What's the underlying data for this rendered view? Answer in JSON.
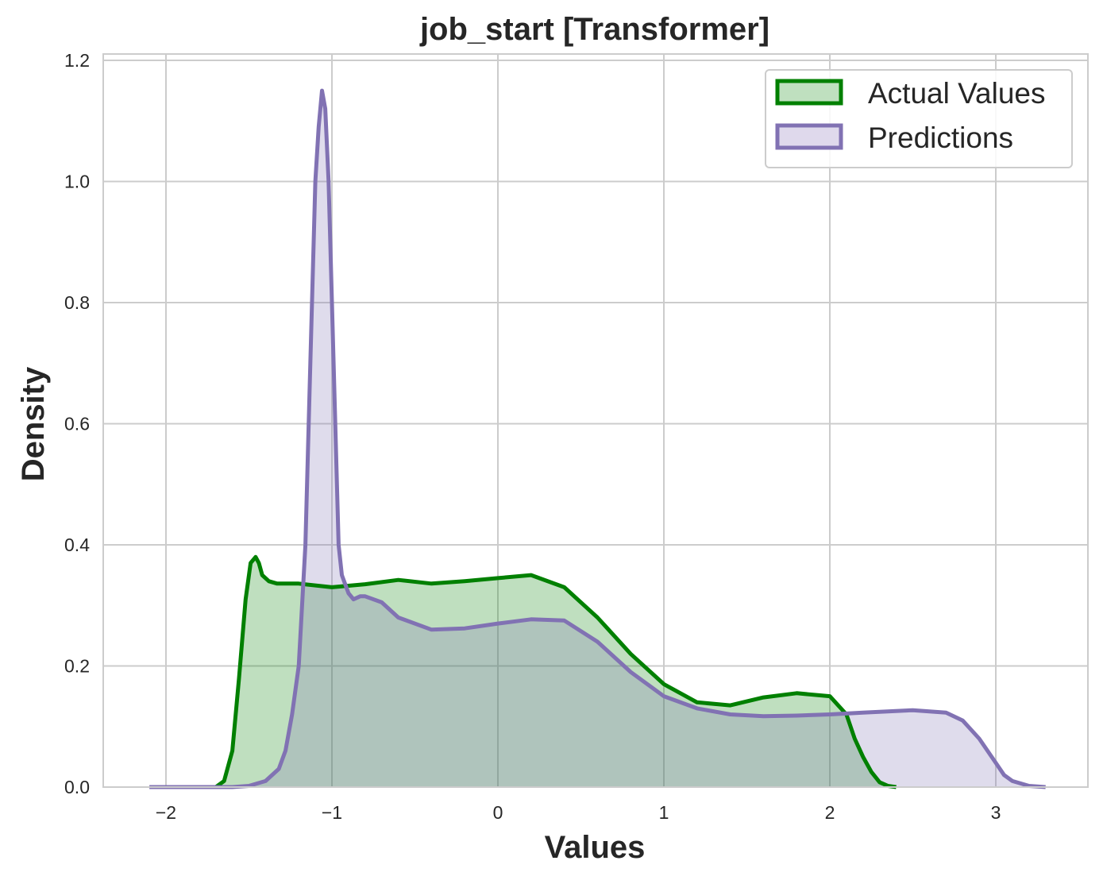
{
  "chart_data": {
    "type": "area",
    "title": "job_start [Transformer]",
    "xlabel": "Values",
    "ylabel": "Density",
    "xlim": [
      -2.4,
      3.55
    ],
    "ylim": [
      0.0,
      1.22
    ],
    "x_ticks": [
      -2,
      -1,
      0,
      1,
      2,
      3
    ],
    "x_tick_labels": [
      "−2",
      "−1",
      "0",
      "1",
      "2",
      "3"
    ],
    "y_ticks": [
      0.0,
      0.2,
      0.4,
      0.6,
      0.8,
      1.0,
      1.2
    ],
    "y_tick_labels": [
      "0.0",
      "0.2",
      "0.4",
      "0.6",
      "0.8",
      "1.0",
      "1.2"
    ],
    "grid": true,
    "legend_position": "top-right",
    "series": [
      {
        "name": "Actual Values",
        "color": "#008000",
        "fill": "#bfe0bf",
        "x": [
          -1.7,
          -1.65,
          -1.6,
          -1.56,
          -1.52,
          -1.49,
          -1.46,
          -1.44,
          -1.42,
          -1.38,
          -1.33,
          -1.2,
          -1.0,
          -0.8,
          -0.6,
          -0.4,
          -0.2,
          0.0,
          0.2,
          0.4,
          0.6,
          0.8,
          1.0,
          1.2,
          1.4,
          1.6,
          1.8,
          2.0,
          2.1,
          2.15,
          2.2,
          2.25,
          2.3,
          2.35,
          2.4
        ],
        "y": [
          0.0,
          0.01,
          0.06,
          0.18,
          0.31,
          0.37,
          0.38,
          0.37,
          0.35,
          0.34,
          0.336,
          0.336,
          0.33,
          0.335,
          0.342,
          0.336,
          0.34,
          0.345,
          0.35,
          0.33,
          0.28,
          0.22,
          0.17,
          0.14,
          0.135,
          0.148,
          0.155,
          0.15,
          0.12,
          0.08,
          0.05,
          0.025,
          0.008,
          0.002,
          0.0
        ]
      },
      {
        "name": "Predictions",
        "color": "#8172b3",
        "fill": "#dfd9ec",
        "x": [
          -2.1,
          -1.6,
          -1.5,
          -1.4,
          -1.32,
          -1.28,
          -1.24,
          -1.2,
          -1.16,
          -1.13,
          -1.1,
          -1.08,
          -1.06,
          -1.04,
          -1.02,
          -1.0,
          -0.98,
          -0.96,
          -0.94,
          -0.9,
          -0.87,
          -0.83,
          -0.8,
          -0.7,
          -0.6,
          -0.4,
          -0.2,
          0.0,
          0.2,
          0.4,
          0.6,
          0.8,
          1.0,
          1.2,
          1.4,
          1.6,
          1.8,
          2.0,
          2.2,
          2.5,
          2.7,
          2.8,
          2.9,
          3.0,
          3.05,
          3.1,
          3.2,
          3.3
        ],
        "y": [
          0.0,
          0.0,
          0.002,
          0.01,
          0.03,
          0.06,
          0.12,
          0.2,
          0.4,
          0.7,
          1.0,
          1.09,
          1.15,
          1.12,
          1.0,
          0.8,
          0.6,
          0.4,
          0.35,
          0.32,
          0.31,
          0.315,
          0.315,
          0.305,
          0.28,
          0.26,
          0.262,
          0.27,
          0.277,
          0.275,
          0.24,
          0.19,
          0.15,
          0.13,
          0.12,
          0.117,
          0.118,
          0.12,
          0.123,
          0.127,
          0.123,
          0.11,
          0.08,
          0.04,
          0.02,
          0.01,
          0.002,
          0.0
        ]
      }
    ]
  },
  "colors": {
    "grid": "#cccccc",
    "text": "#262626",
    "background": "#ffffff"
  }
}
